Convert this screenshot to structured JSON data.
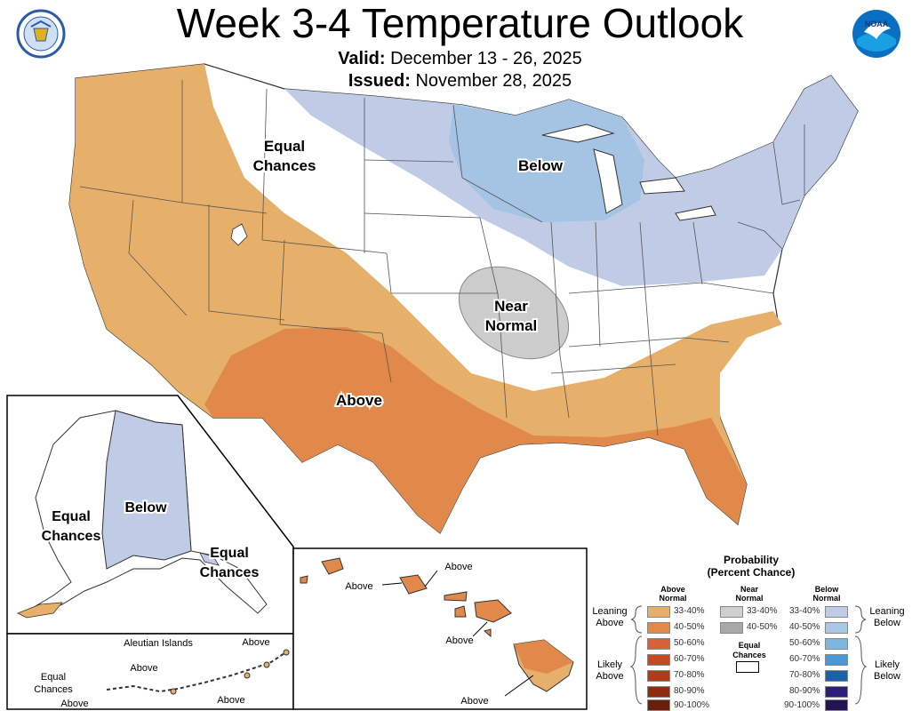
{
  "header": {
    "title": "Week 3-4 Temperature Outlook",
    "valid_label": "Valid:",
    "valid_dates": "December 13 - 26, 2025",
    "issued_label": "Issued:",
    "issued_date": "November 28, 2025"
  },
  "logos": {
    "left": "department-of-commerce-seal",
    "right": "noaa-logo"
  },
  "map_labels": {
    "equal_chances_1": "Equal",
    "equal_chances_2": "Chances",
    "below": "Below",
    "near_1": "Near",
    "near_2": "Normal",
    "above": "Above"
  },
  "alaska": {
    "below": "Below",
    "equal_left_1": "Equal",
    "equal_left_2": "Chances",
    "equal_right_1": "Equal",
    "equal_right_2": "Chances"
  },
  "aleutian": {
    "title": "Aleutian Islands",
    "above_1": "Above",
    "above_2": "Above",
    "above_3": "Above",
    "above_4": "Above",
    "equal_1": "Equal",
    "equal_2": "Chances"
  },
  "hawaii": {
    "above_1": "Above",
    "above_2": "Above",
    "above_3": "Above",
    "above_4": "Above"
  },
  "legend": {
    "title_1": "Probability",
    "title_2": "(Percent Chance)",
    "above_head_1": "Above",
    "above_head_2": "Normal",
    "near_head_1": "Near",
    "near_head_2": "Normal",
    "below_head_1": "Below",
    "below_head_2": "Normal",
    "leaning_above_1": "Leaning",
    "leaning_above_2": "Above",
    "likely_above_1": "Likely",
    "likely_above_2": "Above",
    "leaning_below_1": "Leaning",
    "leaning_below_2": "Below",
    "likely_below_1": "Likely",
    "likely_below_2": "Below",
    "equal_1": "Equal",
    "equal_2": "Chances",
    "above_ranges": [
      "33-40%",
      "40-50%",
      "50-60%",
      "60-70%",
      "70-80%",
      "80-90%",
      "90-100%"
    ],
    "near_ranges": [
      "33-40%",
      "40-50%"
    ],
    "below_ranges": [
      "33-40%",
      "40-50%",
      "50-60%",
      "60-70%",
      "70-80%",
      "80-90%",
      "90-100%"
    ],
    "above_colors": [
      "#e6b06a",
      "#e0894a",
      "#d9613a",
      "#c84a24",
      "#b03a1a",
      "#8e2c12",
      "#6a1f0c"
    ],
    "near_colors": [
      "#cfcfcf",
      "#a8a8a8"
    ],
    "below_colors": [
      "#c0cbe6",
      "#a8c8e6",
      "#7fb6e0",
      "#4a97d4",
      "#1c61a8",
      "#2b1f78",
      "#241552"
    ]
  },
  "colors": {
    "above_lean": "#e6b06a",
    "above_likely": "#e0894a",
    "below_lean": "#c0cbe6",
    "below_likely": "#a5c4e4",
    "near": "#cccccc"
  }
}
